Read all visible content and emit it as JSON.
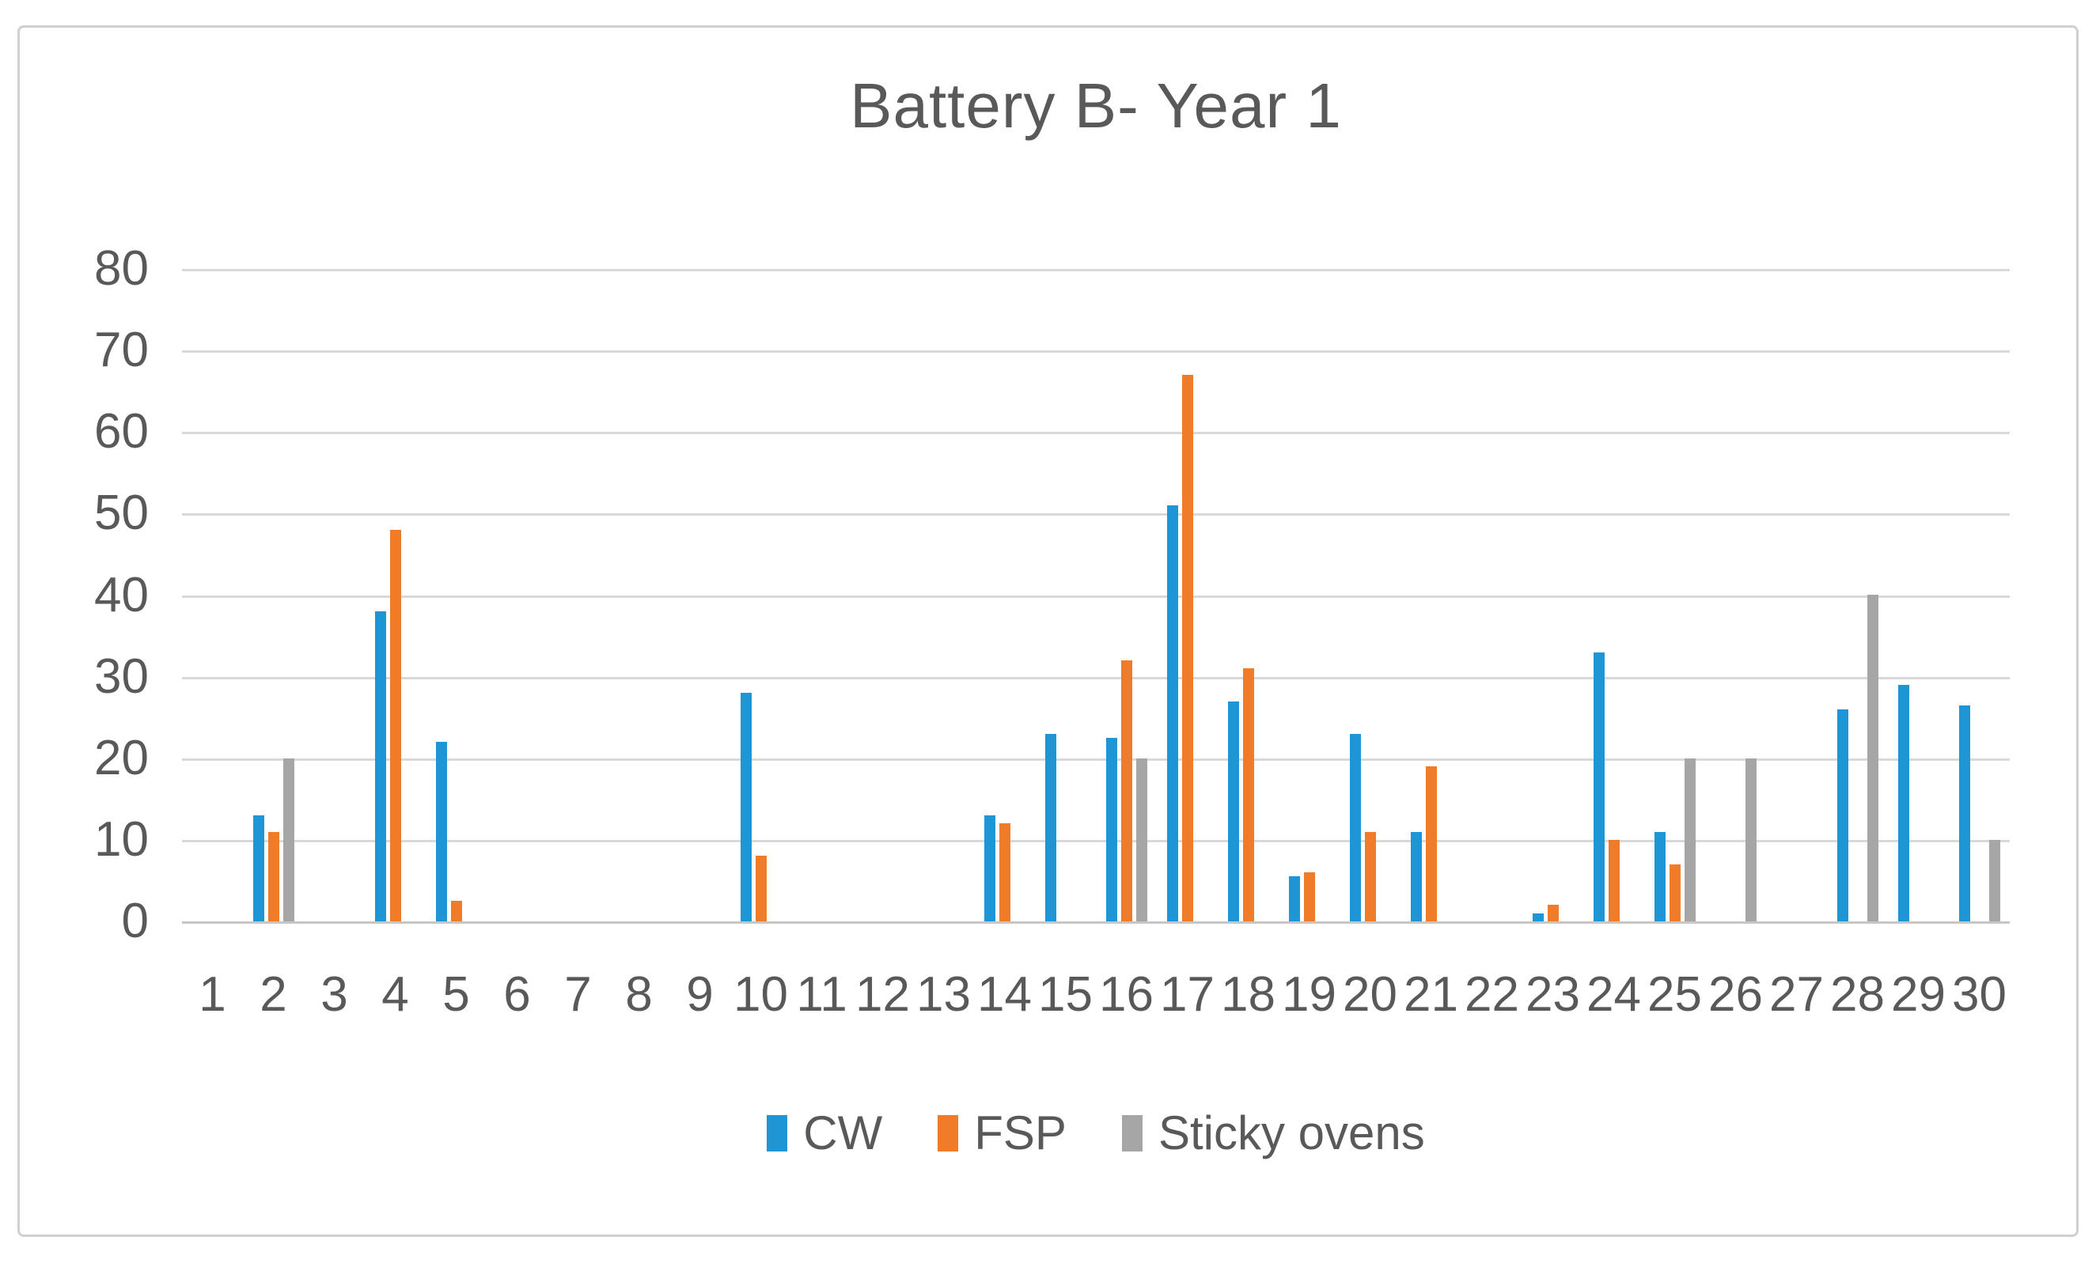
{
  "title": "Battery B- Year 1",
  "colors": {
    "cw": "#1E96D6",
    "fsp": "#F07B28",
    "sticky_ovens": "#A6A6A6",
    "gridline": "#D9D9D9",
    "axis_line": "#C6C6C6",
    "text": "#595959",
    "figure_border": "#D0D0D0",
    "background": "#FFFFFF"
  },
  "y_axis": {
    "tick_labels": [
      "80",
      "70",
      "60",
      "50",
      "40",
      "30",
      "20",
      "10",
      "0"
    ],
    "min": 0,
    "max": 80
  },
  "x_axis": {
    "category_labels": [
      "1",
      "2",
      "3",
      "4",
      "5",
      "6",
      "7",
      "8",
      "9",
      "10",
      "11",
      "12",
      "13",
      "14",
      "15",
      "16",
      "17",
      "18",
      "19",
      "20",
      "21",
      "22",
      "23",
      "24",
      "25",
      "26",
      "27",
      "28",
      "29",
      "30"
    ]
  },
  "legend": {
    "items": [
      {
        "label": "CW",
        "color_key": "cw"
      },
      {
        "label": "FSP",
        "color_key": "fsp"
      },
      {
        "label": "Sticky ovens",
        "color_key": "sticky_ovens"
      }
    ]
  },
  "chart_data": {
    "type": "bar",
    "title": "Battery B- Year 1",
    "categories": [
      1,
      2,
      3,
      4,
      5,
      6,
      7,
      8,
      9,
      10,
      11,
      12,
      13,
      14,
      15,
      16,
      17,
      18,
      19,
      20,
      21,
      22,
      23,
      24,
      25,
      26,
      27,
      28,
      29,
      30
    ],
    "series": [
      {
        "name": "CW",
        "color": "#1E96D6",
        "values": [
          0,
          13,
          0,
          38,
          22,
          0,
          0,
          0,
          0,
          28,
          0,
          0,
          0,
          13,
          23,
          22.5,
          51,
          27,
          5.5,
          23,
          11,
          0,
          1,
          33,
          11,
          0,
          0,
          26,
          29,
          26.5
        ]
      },
      {
        "name": "FSP",
        "color": "#F07B28",
        "values": [
          0,
          11,
          0,
          48,
          2.5,
          0,
          0,
          0,
          0,
          8,
          0,
          0,
          0,
          12,
          0,
          32,
          67,
          31,
          6,
          11,
          19,
          0,
          2,
          10,
          7,
          0,
          0,
          0,
          0,
          0
        ]
      },
      {
        "name": "Sticky ovens",
        "color": "#A6A6A6",
        "values": [
          0,
          20,
          0,
          0,
          0,
          0,
          0,
          0,
          0,
          0,
          0,
          0,
          0,
          0,
          0,
          20,
          0,
          0,
          0,
          0,
          0,
          0,
          0,
          0,
          20,
          20,
          0,
          40,
          0,
          10
        ]
      }
    ],
    "ylim": [
      0,
      80
    ],
    "y_ticks": [
      0,
      10,
      20,
      30,
      40,
      50,
      60,
      70,
      80
    ],
    "grid": true,
    "legend_position": "bottom",
    "xlabel": "",
    "ylabel": ""
  }
}
